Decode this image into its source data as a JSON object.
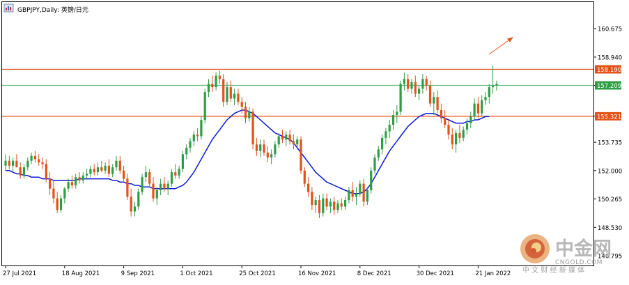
{
  "header": {
    "symbol_label": "GBPJPY,Daily: 英镑/日元"
  },
  "watermark": {
    "brand": "中金网",
    "domain": "CNGOLD.COM",
    "subtitle": "中 文 财 经 新 媒 体"
  },
  "colors": {
    "background": "#ffffff",
    "frame": "#000000",
    "bull_candle": "#2e9e45",
    "bear_candle": "#e2521b",
    "moving_average": "#0a1ad6",
    "resistance_line": "#e2521b",
    "mid_line": "#5fbf80",
    "arrow": "#e2521b",
    "price_tag_orange": "#e2521b",
    "price_tag_green": "#2e9e45"
  },
  "chart_data": {
    "type": "candlestick",
    "title": "GBPJPY,Daily: 英镑/日元",
    "xlabel": "",
    "ylabel": "",
    "ylim": [
      146.2,
      162.3
    ],
    "y_ticks": [
      "160.675",
      "158.940",
      "157.209",
      "155.321",
      "153.735",
      "152.000",
      "150.265",
      "148.530",
      "146.795"
    ],
    "x_ticks": [
      "27 Jul 2021",
      "18 Aug 2021",
      "9 Sep 2021",
      "1 Oct 2021",
      "25 Oct 2021",
      "16 Nov 2021",
      "8 Dec 2021",
      "30 Dec 2021",
      "21 Jan 2022"
    ],
    "x_tick_bar_index": [
      0,
      16,
      32,
      48,
      64,
      80,
      96,
      112,
      128
    ],
    "horizontal_lines": [
      {
        "price": 158.19,
        "label": "158.190",
        "style": "orange"
      },
      {
        "price": 157.209,
        "label": "157.209",
        "style": "green"
      },
      {
        "price": 155.321,
        "label": "155.321",
        "style": "orange"
      }
    ],
    "candles": [
      [
        152.3,
        153.0,
        152.0,
        152.6
      ],
      [
        152.6,
        152.9,
        152.1,
        152.3
      ],
      [
        152.3,
        152.8,
        151.9,
        152.6
      ],
      [
        152.6,
        153.0,
        152.2,
        152.2
      ],
      [
        152.2,
        152.5,
        151.5,
        151.7
      ],
      [
        151.7,
        152.4,
        151.5,
        152.2
      ],
      [
        152.2,
        152.8,
        152.0,
        152.6
      ],
      [
        152.6,
        153.1,
        152.4,
        152.9
      ],
      [
        152.9,
        153.2,
        152.5,
        152.7
      ],
      [
        152.7,
        153.0,
        152.3,
        152.5
      ],
      [
        152.5,
        152.8,
        152.1,
        152.4
      ],
      [
        152.4,
        152.7,
        151.3,
        151.5
      ],
      [
        151.5,
        151.9,
        150.5,
        150.9
      ],
      [
        150.9,
        151.4,
        150.0,
        150.3
      ],
      [
        150.3,
        150.7,
        149.4,
        149.6
      ],
      [
        149.6,
        150.5,
        149.4,
        150.3
      ],
      [
        150.3,
        151.0,
        150.0,
        150.9
      ],
      [
        150.9,
        151.5,
        150.7,
        151.3
      ],
      [
        151.3,
        151.7,
        150.9,
        151.1
      ],
      [
        151.1,
        151.8,
        150.9,
        151.6
      ],
      [
        151.6,
        151.9,
        151.2,
        151.4
      ],
      [
        151.4,
        151.9,
        151.2,
        151.7
      ],
      [
        151.7,
        152.1,
        151.5,
        151.8
      ],
      [
        151.8,
        152.3,
        151.6,
        152.1
      ],
      [
        152.1,
        152.4,
        151.7,
        151.9
      ],
      [
        151.9,
        152.5,
        151.7,
        152.2
      ],
      [
        152.2,
        152.6,
        151.9,
        152.0
      ],
      [
        152.0,
        152.5,
        151.8,
        152.3
      ],
      [
        152.3,
        152.7,
        151.6,
        151.8
      ],
      [
        151.8,
        152.4,
        151.6,
        152.2
      ],
      [
        152.2,
        152.9,
        152.0,
        152.6
      ],
      [
        152.6,
        152.9,
        151.8,
        152.0
      ],
      [
        152.0,
        152.3,
        151.3,
        151.5
      ],
      [
        151.5,
        151.8,
        150.2,
        150.4
      ],
      [
        150.4,
        150.9,
        149.2,
        149.5
      ],
      [
        149.5,
        150.1,
        149.2,
        149.8
      ],
      [
        149.8,
        150.9,
        149.6,
        150.7
      ],
      [
        150.7,
        151.8,
        150.5,
        151.6
      ],
      [
        151.6,
        152.3,
        151.3,
        151.9
      ],
      [
        151.9,
        152.1,
        151.0,
        151.2
      ],
      [
        151.2,
        151.6,
        150.1,
        150.3
      ],
      [
        150.3,
        151.0,
        149.9,
        150.8
      ],
      [
        150.8,
        151.5,
        150.5,
        151.2
      ],
      [
        151.2,
        151.6,
        150.7,
        150.9
      ],
      [
        150.9,
        151.4,
        150.5,
        151.2
      ],
      [
        151.2,
        152.1,
        151.0,
        151.9
      ],
      [
        151.9,
        152.4,
        151.5,
        151.7
      ],
      [
        151.7,
        152.3,
        151.5,
        152.1
      ],
      [
        152.1,
        153.2,
        151.9,
        153.0
      ],
      [
        153.0,
        153.6,
        152.7,
        153.4
      ],
      [
        153.4,
        154.0,
        153.1,
        153.8
      ],
      [
        153.8,
        154.4,
        153.5,
        154.2
      ],
      [
        154.2,
        154.6,
        153.8,
        154.1
      ],
      [
        154.1,
        155.3,
        153.9,
        155.1
      ],
      [
        155.1,
        157.0,
        154.9,
        156.8
      ],
      [
        156.8,
        157.6,
        156.5,
        157.3
      ],
      [
        157.3,
        157.8,
        156.8,
        157.1
      ],
      [
        157.1,
        158.0,
        156.9,
        157.8
      ],
      [
        157.8,
        158.1,
        157.3,
        157.6
      ],
      [
        157.6,
        157.9,
        155.9,
        156.2
      ],
      [
        156.2,
        157.4,
        156.0,
        157.1
      ],
      [
        157.1,
        157.5,
        156.2,
        156.4
      ],
      [
        156.4,
        157.0,
        156.0,
        156.7
      ],
      [
        156.7,
        157.0,
        156.0,
        156.2
      ],
      [
        156.2,
        156.5,
        155.5,
        155.9
      ],
      [
        155.9,
        156.2,
        154.9,
        155.2
      ],
      [
        155.2,
        155.9,
        155.0,
        155.6
      ],
      [
        155.6,
        155.8,
        153.3,
        153.6
      ],
      [
        153.6,
        154.0,
        152.9,
        153.2
      ],
      [
        153.2,
        153.9,
        152.8,
        153.6
      ],
      [
        153.6,
        153.9,
        152.9,
        153.1
      ],
      [
        153.1,
        153.5,
        152.5,
        152.8
      ],
      [
        152.8,
        153.3,
        152.4,
        153.0
      ],
      [
        153.0,
        153.8,
        152.8,
        153.6
      ],
      [
        153.6,
        154.3,
        153.4,
        154.1
      ],
      [
        154.1,
        154.5,
        153.7,
        153.9
      ],
      [
        153.9,
        154.4,
        153.5,
        154.2
      ],
      [
        154.2,
        154.5,
        153.6,
        153.8
      ],
      [
        153.8,
        154.2,
        153.3,
        153.6
      ],
      [
        153.6,
        154.1,
        153.3,
        153.9
      ],
      [
        153.9,
        154.1,
        151.8,
        152.0
      ],
      [
        152.0,
        152.2,
        151.0,
        151.2
      ],
      [
        151.2,
        151.6,
        150.4,
        150.7
      ],
      [
        150.7,
        151.0,
        149.6,
        149.9
      ],
      [
        149.9,
        150.4,
        149.4,
        150.2
      ],
      [
        150.2,
        150.5,
        149.1,
        149.4
      ],
      [
        149.4,
        150.6,
        149.2,
        150.3
      ],
      [
        150.3,
        150.6,
        149.6,
        149.8
      ],
      [
        149.8,
        150.3,
        149.4,
        150.1
      ],
      [
        150.1,
        150.4,
        149.3,
        149.6
      ],
      [
        149.6,
        150.2,
        149.4,
        150.0
      ],
      [
        150.0,
        150.3,
        149.6,
        149.8
      ],
      [
        149.8,
        150.4,
        149.6,
        150.2
      ],
      [
        150.2,
        151.0,
        150.0,
        150.8
      ],
      [
        150.8,
        151.3,
        150.1,
        150.4
      ],
      [
        150.4,
        151.0,
        149.9,
        150.6
      ],
      [
        150.6,
        151.4,
        150.4,
        151.2
      ],
      [
        151.2,
        151.5,
        149.8,
        150.1
      ],
      [
        150.1,
        151.0,
        149.9,
        150.8
      ],
      [
        150.8,
        152.2,
        150.6,
        152.0
      ],
      [
        152.0,
        153.0,
        151.8,
        152.8
      ],
      [
        152.8,
        153.5,
        152.6,
        153.3
      ],
      [
        153.3,
        154.2,
        153.0,
        154.0
      ],
      [
        154.0,
        154.6,
        153.6,
        154.4
      ],
      [
        154.4,
        155.1,
        154.0,
        154.8
      ],
      [
        154.8,
        155.7,
        154.5,
        155.4
      ],
      [
        155.4,
        156.0,
        154.9,
        155.6
      ],
      [
        155.6,
        157.5,
        155.4,
        157.3
      ],
      [
        157.3,
        158.0,
        156.9,
        157.6
      ],
      [
        157.6,
        157.9,
        156.8,
        157.0
      ],
      [
        157.0,
        157.6,
        156.7,
        157.4
      ],
      [
        157.4,
        157.8,
        156.5,
        156.7
      ],
      [
        156.7,
        157.2,
        156.3,
        157.0
      ],
      [
        157.0,
        157.9,
        156.7,
        157.6
      ],
      [
        157.6,
        157.8,
        156.9,
        157.2
      ],
      [
        157.2,
        157.5,
        155.9,
        156.1
      ],
      [
        156.1,
        156.8,
        155.4,
        156.5
      ],
      [
        156.5,
        156.9,
        155.5,
        155.7
      ],
      [
        155.7,
        156.1,
        154.9,
        155.2
      ],
      [
        155.2,
        155.7,
        154.6,
        154.8
      ],
      [
        154.8,
        155.1,
        153.9,
        154.2
      ],
      [
        154.2,
        154.6,
        153.3,
        153.6
      ],
      [
        153.6,
        154.5,
        153.1,
        154.3
      ],
      [
        154.3,
        154.8,
        153.7,
        154.0
      ],
      [
        154.0,
        154.7,
        153.8,
        154.5
      ],
      [
        154.5,
        155.2,
        154.2,
        154.9
      ],
      [
        154.9,
        155.6,
        154.6,
        155.3
      ],
      [
        155.3,
        156.4,
        155.1,
        156.1
      ],
      [
        156.1,
        156.5,
        155.2,
        155.5
      ],
      [
        155.5,
        156.6,
        155.3,
        156.3
      ],
      [
        156.3,
        156.8,
        156.0,
        156.5
      ],
      [
        156.5,
        157.3,
        156.1,
        157.1
      ],
      [
        157.1,
        158.4,
        156.7,
        157.2
      ],
      [
        157.2,
        157.5,
        156.9,
        157.3
      ]
    ],
    "moving_average": {
      "name": "",
      "values": [
        152.0,
        152.0,
        151.9,
        151.8,
        151.8,
        151.7,
        151.7,
        151.6,
        151.6,
        151.6,
        151.5,
        151.5,
        151.5,
        151.4,
        151.4,
        151.4,
        151.4,
        151.4,
        151.4,
        151.4,
        151.5,
        151.5,
        151.5,
        151.5,
        151.5,
        151.5,
        151.5,
        151.5,
        151.5,
        151.4,
        151.4,
        151.3,
        151.3,
        151.2,
        151.2,
        151.1,
        151.1,
        151.0,
        151.0,
        151.0,
        150.9,
        150.9,
        150.9,
        150.9,
        150.9,
        150.9,
        150.9,
        151.0,
        151.1,
        151.3,
        151.6,
        151.9,
        152.3,
        152.7,
        153.1,
        153.5,
        153.9,
        154.2,
        154.5,
        154.8,
        155.1,
        155.3,
        155.5,
        155.6,
        155.7,
        155.7,
        155.6,
        155.5,
        155.3,
        155.1,
        154.9,
        154.7,
        154.5,
        154.3,
        154.2,
        154.1,
        154.0,
        153.9,
        153.7,
        153.4,
        153.1,
        152.8,
        152.5,
        152.2,
        151.9,
        151.7,
        151.5,
        151.3,
        151.2,
        151.1,
        151.0,
        150.9,
        150.8,
        150.7,
        150.6,
        150.6,
        150.6,
        150.7,
        150.9,
        151.2,
        151.6,
        152.0,
        152.4,
        152.8,
        153.2,
        153.5,
        153.8,
        154.1,
        154.4,
        154.7,
        154.9,
        155.1,
        155.3,
        155.4,
        155.5,
        155.5,
        155.5,
        155.4,
        155.3,
        155.2,
        155.1,
        155.0,
        154.9,
        154.9,
        154.9,
        155.0,
        155.0,
        155.1,
        155.1,
        155.2,
        155.3,
        155.3
      ]
    },
    "annotations": [
      {
        "type": "arrow",
        "direction": "up-right"
      }
    ],
    "grid": false
  }
}
